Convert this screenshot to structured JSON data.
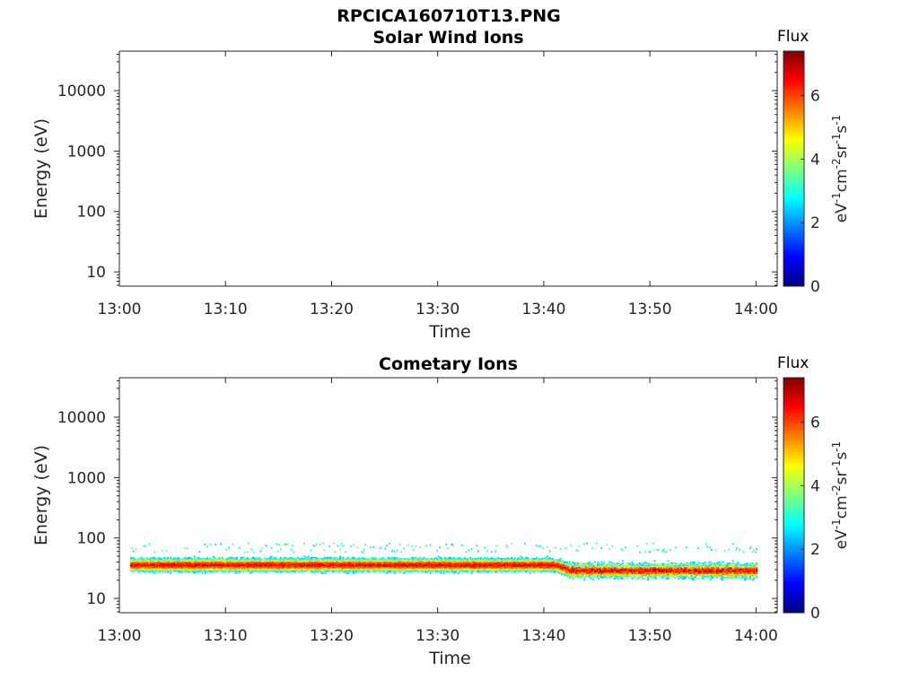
{
  "figure_title": "RPCICA160710T13.PNG",
  "colors": {
    "axis": "#262626",
    "colormap": [
      "#00007f",
      "#0000ff",
      "#007fff",
      "#00ffff",
      "#7fff7f",
      "#ffff00",
      "#ff7f00",
      "#ff0000",
      "#7f0000"
    ]
  },
  "chart_data": [
    {
      "type": "heatmap",
      "title": "Solar Wind Ions",
      "xlabel": "Time",
      "ylabel": "Energy (eV)",
      "y_scale": "log",
      "ylim": [
        5.8,
        45000
      ],
      "x_range": [
        "13:00",
        "14:02"
      ],
      "x_ticks": [
        "13:00",
        "13:10",
        "13:20",
        "13:30",
        "13:40",
        "13:50",
        "14:00"
      ],
      "y_ticks": [
        10,
        100,
        1000,
        10000
      ],
      "y_tick_labels": [
        "10",
        "100",
        "1000",
        "10000"
      ],
      "colorbar": {
        "title": "Flux",
        "label": "eV-1cm-2sr-1s-1",
        "range": [
          0,
          7.4
        ],
        "ticks": [
          0,
          2,
          4,
          6
        ],
        "tick_labels": [
          "0",
          "2",
          "4",
          "6"
        ]
      },
      "bands": []
    },
    {
      "type": "heatmap",
      "title": "Cometary Ions",
      "xlabel": "Time",
      "ylabel": "Energy (eV)",
      "y_scale": "log",
      "ylim": [
        5.8,
        45000
      ],
      "x_range": [
        "13:00",
        "14:02"
      ],
      "x_ticks": [
        "13:00",
        "13:10",
        "13:20",
        "13:30",
        "13:40",
        "13:50",
        "14:00"
      ],
      "y_ticks": [
        10,
        100,
        1000,
        10000
      ],
      "y_tick_labels": [
        "10",
        "100",
        "1000",
        "10000"
      ],
      "colorbar": {
        "title": "Flux",
        "label": "eV-1cm-2sr-1s-1",
        "range": [
          0,
          7.4
        ],
        "ticks": [
          0,
          2,
          4,
          6
        ],
        "tick_labels": [
          "0",
          "2",
          "4",
          "6"
        ]
      },
      "bands": [
        {
          "time_start": "13:01",
          "time_end": "14:00",
          "peak_energy_start": 36,
          "peak_energy_end": 29,
          "transition_time": "13:41",
          "energy_min": 20,
          "energy_max": 60,
          "peak_flux": 7.0,
          "sparse_max_energy": 85
        }
      ]
    }
  ]
}
